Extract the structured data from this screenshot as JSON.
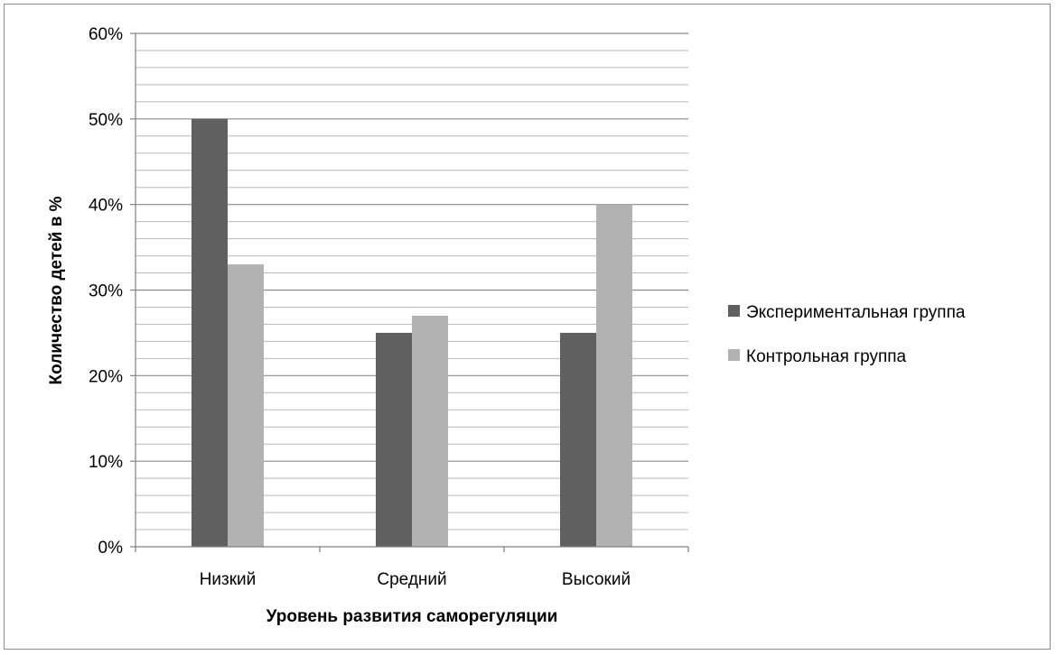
{
  "chart_data": {
    "type": "bar",
    "categories": [
      "Низкий",
      "Средний",
      "Высокий"
    ],
    "series": [
      {
        "name": "Экспериментальная группа",
        "values": [
          50,
          25,
          25
        ],
        "color": "#606060"
      },
      {
        "name": "Контрольная группа",
        "values": [
          33,
          27,
          40
        ],
        "color": "#b2b2b2"
      }
    ],
    "title": "",
    "xlabel": "Уровень развития саморегуляции",
    "ylabel": "Количество детей в %",
    "ylim": [
      0,
      60
    ],
    "y_ticks": [
      0,
      10,
      20,
      30,
      40,
      50,
      60
    ],
    "y_tick_labels": [
      "0%",
      "10%",
      "20%",
      "30%",
      "40%",
      "50%",
      "60%"
    ],
    "minor_grid_step": 2,
    "grid": true,
    "legend_position": "right"
  }
}
